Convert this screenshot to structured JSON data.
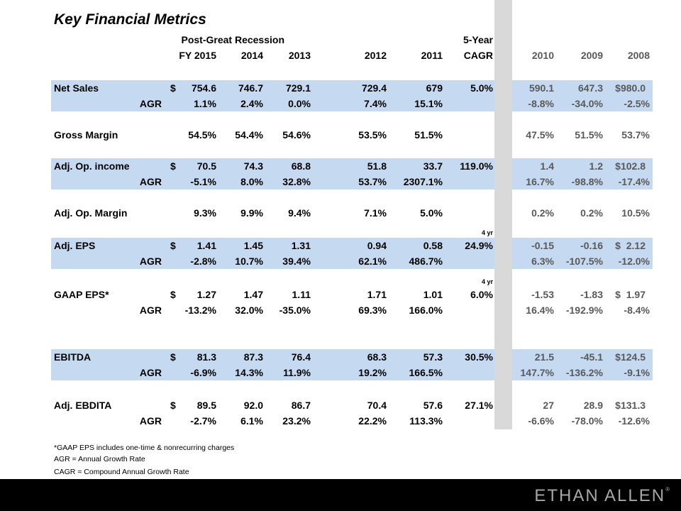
{
  "title": "Key Financial Metrics",
  "header": {
    "group_label": "Post-Great Recession",
    "cagr_top": "5-Year",
    "columns": [
      "FY 2015",
      "2014",
      "2013",
      "2012",
      "2011",
      "CAGR",
      "2010",
      "2009",
      "2008"
    ]
  },
  "colors": {
    "band": "#c5d9f1",
    "separator": "#d9d9d9",
    "historic_text": "#595959",
    "footer": "#000000"
  },
  "rows": [
    {
      "label": "Net Sales",
      "dollar": "$",
      "values": [
        "754.6",
        "746.7",
        "729.1",
        "729.4",
        "679",
        "5.0%",
        "590.1",
        "647.3",
        "$980.0"
      ],
      "band": true
    },
    {
      "label": "AGR",
      "values": [
        "1.1%",
        "2.4%",
        "0.0%",
        "7.4%",
        "15.1%",
        "",
        "-8.8%",
        "-34.0%",
        "-2.5%"
      ],
      "band": true,
      "agr": true
    },
    {
      "label": "Gross Margin",
      "values": [
        "54.5%",
        "54.4%",
        "54.6%",
        "53.5%",
        "51.5%",
        "",
        "47.5%",
        "51.5%",
        "53.7%"
      ]
    },
    {
      "label": "Adj. Op. income",
      "dollar": "$",
      "values": [
        "70.5",
        "74.3",
        "68.8",
        "51.8",
        "33.7",
        "119.0%",
        "1.4",
        "1.2",
        "$102.8"
      ],
      "band": true
    },
    {
      "label": "AGR",
      "values": [
        "-5.1%",
        "8.0%",
        "32.8%",
        "53.7%",
        "2307.1%",
        "",
        "16.7%",
        "-98.8%",
        "-17.4%"
      ],
      "band": true,
      "agr": true
    },
    {
      "label": "Adj. Op. Margin",
      "values": [
        "9.3%",
        "9.9%",
        "9.4%",
        "7.1%",
        "5.0%",
        "",
        "0.2%",
        "0.2%",
        "10.5%"
      ]
    },
    {
      "label": "Adj. EPS",
      "dollar": "$",
      "values": [
        "1.41",
        "1.45",
        "1.31",
        "0.94",
        "0.58",
        "24.9%",
        "-0.15",
        "-0.16",
        "$  2.12"
      ],
      "band": true,
      "note": "4 yr"
    },
    {
      "label": "AGR",
      "values": [
        "-2.8%",
        "10.7%",
        "39.4%",
        "62.1%",
        "486.7%",
        "",
        "6.3%",
        "-107.5%",
        "-12.0%"
      ],
      "band": true,
      "agr": true
    },
    {
      "label": "GAAP EPS*",
      "dollar": "$",
      "values": [
        "1.27",
        "1.47",
        "1.11",
        "1.71",
        "1.01",
        "6.0%",
        "-1.53",
        "-1.83",
        "$  1.97"
      ],
      "note": "4 yr"
    },
    {
      "label": "AGR",
      "values": [
        "-13.2%",
        "32.0%",
        "-35.0%",
        "69.3%",
        "166.0%",
        "",
        "16.4%",
        "-192.9%",
        "-8.4%"
      ],
      "agr": true
    },
    {
      "label": "EBITDA",
      "dollar": "$",
      "values": [
        "81.3",
        "87.3",
        "76.4",
        "68.3",
        "57.3",
        "30.5%",
        "21.5",
        "-45.1",
        "$124.5"
      ],
      "band": true
    },
    {
      "label": "AGR",
      "values": [
        "-6.9%",
        "14.3%",
        "11.9%",
        "19.2%",
        "166.5%",
        "",
        "147.7%",
        "-136.2%",
        "-9.1%"
      ],
      "band": true,
      "agr": true
    },
    {
      "label": "Adj. EBDITA",
      "dollar": "$",
      "values": [
        "89.5",
        "92.0",
        "86.7",
        "70.4",
        "57.6",
        "27.1%",
        "27",
        "28.9",
        "$131.3"
      ]
    },
    {
      "label": "AGR",
      "values": [
        "-2.7%",
        "6.1%",
        "23.2%",
        "22.2%",
        "113.3%",
        "",
        "-6.6%",
        "-78.0%",
        "-12.6%"
      ],
      "agr": true
    }
  ],
  "footnotes": [
    "*GAAP EPS includes one-time & nonrecurring charges",
    "AGR = Annual Growth Rate",
    "CAGR = Compound Annual Growth Rate"
  ],
  "logo": "ETHAN ALLEN"
}
